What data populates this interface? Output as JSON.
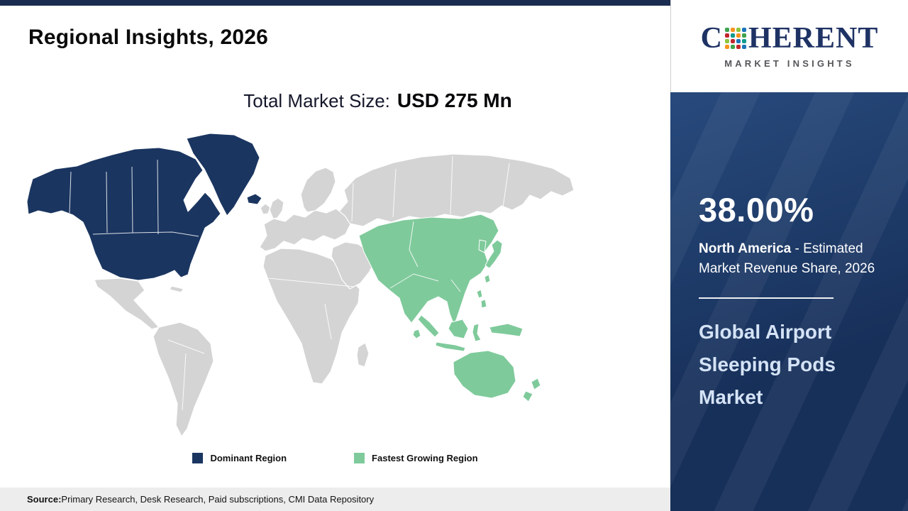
{
  "colors": {
    "dominant": "#1a3560",
    "growing": "#7fca9b",
    "land": "#d4d4d4",
    "sidebar_from": "#2c5186",
    "sidebar_to": "#17305a",
    "brand_navy": "#1e3264"
  },
  "header": {
    "title": "Regional Insights, 2026",
    "market_size_label": "Total Market Size:",
    "market_size_value": "USD 275 Mn"
  },
  "logo": {
    "name_prefix": "C",
    "name_suffix": "HERENT",
    "tagline": "MARKET INSIGHTS",
    "mosaic_colors": [
      "#3fa34d",
      "#f7941d",
      "#8dc63f",
      "#1b75bb",
      "#c1272d",
      "#0f9b8e",
      "#f7941d",
      "#3fa34d",
      "#8dc63f",
      "#c1272d",
      "#1b75bb",
      "#0f9b8e",
      "#f7941d",
      "#3fa34d",
      "#c1272d",
      "#1b75bb"
    ]
  },
  "map": {
    "legend": [
      {
        "label": "Dominant Region",
        "color": "#1a3560"
      },
      {
        "label": "Fastest Growing Region",
        "color": "#7fca9b"
      }
    ]
  },
  "sidebar": {
    "stat_value": "38.00%",
    "stat_region": "North America",
    "stat_desc": " - Estimated Market Revenue Share, 2026",
    "market_name": "Global Airport Sleeping Pods Market"
  },
  "footer": {
    "label": "Source:",
    "text": " Primary Research, Desk Research, Paid subscriptions, CMI Data Repository"
  },
  "chart_data": {
    "type": "choropleth_map",
    "title": "Regional Insights, 2026",
    "year": 2026,
    "market": "Global Airport Sleeping Pods Market",
    "total_market_size_text": "USD 275 Mn",
    "total_market_size_usd_mn": 275,
    "regions": [
      {
        "name": "North America",
        "role": "Dominant Region",
        "estimated_market_revenue_share_pct": 38.0,
        "color": "#1a3560"
      },
      {
        "name": "Asia Pacific",
        "role": "Fastest Growing Region",
        "color": "#7fca9b"
      },
      {
        "name": "Rest of World",
        "role": "Other",
        "color": "#d4d4d4"
      }
    ],
    "legend": [
      "Dominant Region",
      "Fastest Growing Region"
    ],
    "legend_position": "bottom-center",
    "source": "Primary Research, Desk Research, Paid subscriptions, CMI Data Repository"
  }
}
